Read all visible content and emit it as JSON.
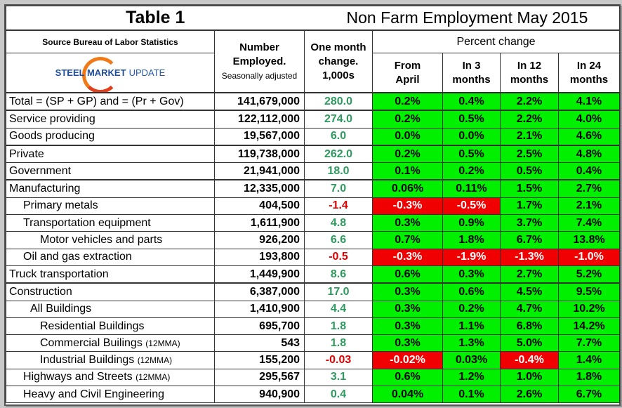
{
  "title": "Table 1",
  "subtitle": "Non Farm Employment May 2015",
  "source": "Source Bureau of Labor Statistics",
  "logo_text": "STEEL MARKET UPDATE",
  "logo_bold": "STEEL MARKET",
  "logo_light": "UPDATE",
  "headers": {
    "number_1": "Number",
    "number_2": "Employed.",
    "number_3": "Seasonally adjusted",
    "change_1": "One month",
    "change_2": "change.",
    "change_3": "1,000s",
    "percent_change": "Percent change",
    "p1a": "From",
    "p1b": "April",
    "p2a": "In 3",
    "p2b": "months",
    "p3a": "In 12",
    "p3b": "months",
    "p4a": "In 24",
    "p4b": "months"
  },
  "colors": {
    "positive": "#00f000",
    "negative": "#f00000",
    "change_positive": "#2e9a5e",
    "change_negative": "#e00000"
  },
  "rows": [
    {
      "label": "Total = (SP + GP) and = (Pr + Gov)",
      "indent": 0,
      "number": "141,679,000",
      "change": "280.0",
      "pct": [
        "0.2%",
        "0.4%",
        "2.2%",
        "4.1%"
      ],
      "sep": true
    },
    {
      "label": "Service providing",
      "indent": 0,
      "number": "122,112,000",
      "change": "274.0",
      "pct": [
        "0.2%",
        "0.5%",
        "2.2%",
        "4.0%"
      ]
    },
    {
      "label": "Goods producing",
      "indent": 0,
      "number": "19,567,000",
      "change": "6.0",
      "pct": [
        "0.0%",
        "0.0%",
        "2.1%",
        "4.6%"
      ],
      "sep": true
    },
    {
      "label": "Private",
      "indent": 0,
      "number": "119,738,000",
      "change": "262.0",
      "pct": [
        "0.2%",
        "0.5%",
        "2.5%",
        "4.8%"
      ]
    },
    {
      "label": "Government",
      "indent": 0,
      "number": "21,941,000",
      "change": "18.0",
      "pct": [
        "0.1%",
        "0.2%",
        "0.5%",
        "0.4%"
      ],
      "sep": true
    },
    {
      "label": "Manufacturing",
      "indent": 0,
      "number": "12,335,000",
      "change": "7.0",
      "pct": [
        "0.06%",
        "0.11%",
        "1.5%",
        "2.7%"
      ]
    },
    {
      "label": "Primary metals",
      "indent": 1,
      "number": "404,500",
      "change": "-1.4",
      "pct": [
        "-0.3%",
        "-0.5%",
        "1.7%",
        "2.1%"
      ]
    },
    {
      "label": "Transportation equipment",
      "indent": 1,
      "number": "1,611,900",
      "change": "4.8",
      "pct": [
        "0.3%",
        "0.9%",
        "3.7%",
        "7.4%"
      ]
    },
    {
      "label": "Motor vehicles and parts",
      "indent": 3,
      "number": "926,200",
      "change": "6.6",
      "pct": [
        "0.7%",
        "1.8%",
        "6.7%",
        "13.8%"
      ]
    },
    {
      "label": "Oil and gas extraction",
      "indent": 1,
      "number": "193,800",
      "change": "-0.5",
      "pct": [
        "-0.3%",
        "-1.9%",
        "-1.3%",
        "-1.0%"
      ]
    },
    {
      "label": "Truck transportation",
      "indent": 0,
      "number": "1,449,900",
      "change": "8.6",
      "pct": [
        "0.6%",
        "0.3%",
        "2.7%",
        "5.2%"
      ],
      "sep": true
    },
    {
      "label": "Construction",
      "indent": 0,
      "number": "6,387,000",
      "change": "17.0",
      "pct": [
        "0.3%",
        "0.6%",
        "4.5%",
        "9.5%"
      ]
    },
    {
      "label": "All Buildings",
      "indent": 2,
      "number": "1,410,900",
      "change": "4.4",
      "pct": [
        "0.3%",
        "0.2%",
        "4.7%",
        "10.2%"
      ]
    },
    {
      "label": "Residential Buildings",
      "indent": 3,
      "number": "695,700",
      "change": "1.8",
      "pct": [
        "0.3%",
        "1.1%",
        "6.8%",
        "14.2%"
      ]
    },
    {
      "label": "Commercial Builings",
      "suffix": "(12MMA)",
      "indent": 3,
      "number": "543",
      "change": "1.8",
      "pct": [
        "0.3%",
        "1.3%",
        "5.0%",
        "7.7%"
      ]
    },
    {
      "label": "Industrial Buildings",
      "suffix": "(12MMA)",
      "indent": 3,
      "number": "155,200",
      "change": "-0.03",
      "pct": [
        "-0.02%",
        "0.03%",
        "-0.4%",
        "1.4%"
      ]
    },
    {
      "label": "Highways and Streets",
      "suffix": "(12MMA)",
      "indent": 1,
      "number": "295,567",
      "change": "3.1",
      "pct": [
        "0.6%",
        "1.2%",
        "1.0%",
        "1.8%"
      ]
    },
    {
      "label": "Heavy and Civil Engineering",
      "indent": 1,
      "number": "940,900",
      "change": "0.4",
      "pct": [
        "0.04%",
        "0.1%",
        "2.6%",
        "6.7%"
      ]
    }
  ]
}
